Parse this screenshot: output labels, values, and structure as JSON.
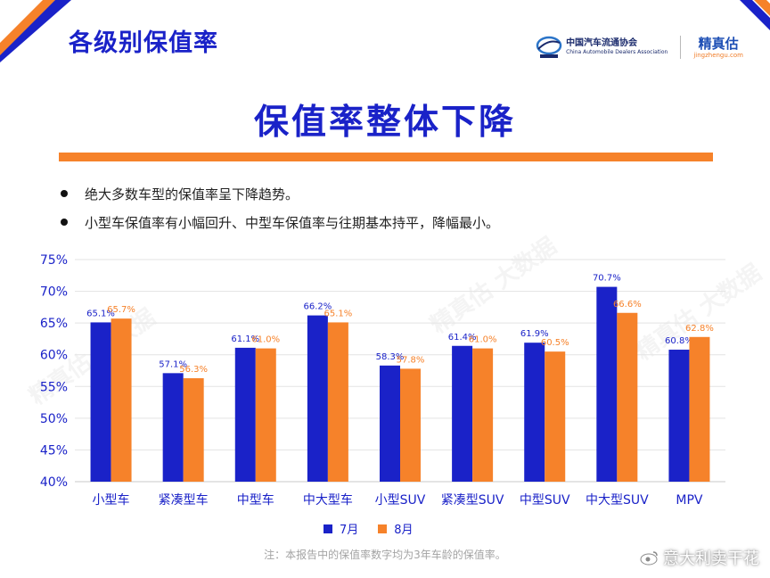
{
  "page": {
    "section_title": "各级别保值率",
    "headline": "保值率整体下降",
    "bullets": [
      "绝大多数车型的保值率呈下降趋势。",
      "小型车保值率有小幅回升、中型车保值率与往期基本持平，降幅最小。"
    ],
    "footnote": "注：本报告中的保值率数字均为3年车龄的保值率。",
    "weibo_mark": "意大利卖干花"
  },
  "logos": {
    "cada_name": "中国汽车流通协会",
    "cada_english": "China Automobile Dealers Association",
    "jzg_name": "精真估",
    "jzg_url": "jingzhengu.com"
  },
  "watermark": {
    "text": "精真估 大数据"
  },
  "colors": {
    "jul": "#1a22c8",
    "aug": "#f6822a",
    "accent": "#f6822a",
    "title": "#1a22c8"
  },
  "chart_data": {
    "type": "bar",
    "categories": [
      "小型车",
      "紧凑型车",
      "中型车",
      "中大型车",
      "小型SUV",
      "紧凑型SUV",
      "中型SUV",
      "中大型SUV",
      "MPV"
    ],
    "series": [
      {
        "name": "7月",
        "values": [
          65.1,
          57.1,
          61.1,
          66.2,
          58.3,
          61.4,
          61.9,
          70.7,
          60.8
        ]
      },
      {
        "name": "8月",
        "values": [
          65.7,
          56.3,
          61.0,
          65.1,
          57.8,
          61.0,
          60.5,
          66.6,
          62.8
        ]
      }
    ],
    "ylim": [
      40,
      75
    ],
    "yticks": [
      40,
      45,
      50,
      55,
      60,
      65,
      70,
      75
    ],
    "unit": "%",
    "grid": true,
    "legend_position": "bottom"
  }
}
